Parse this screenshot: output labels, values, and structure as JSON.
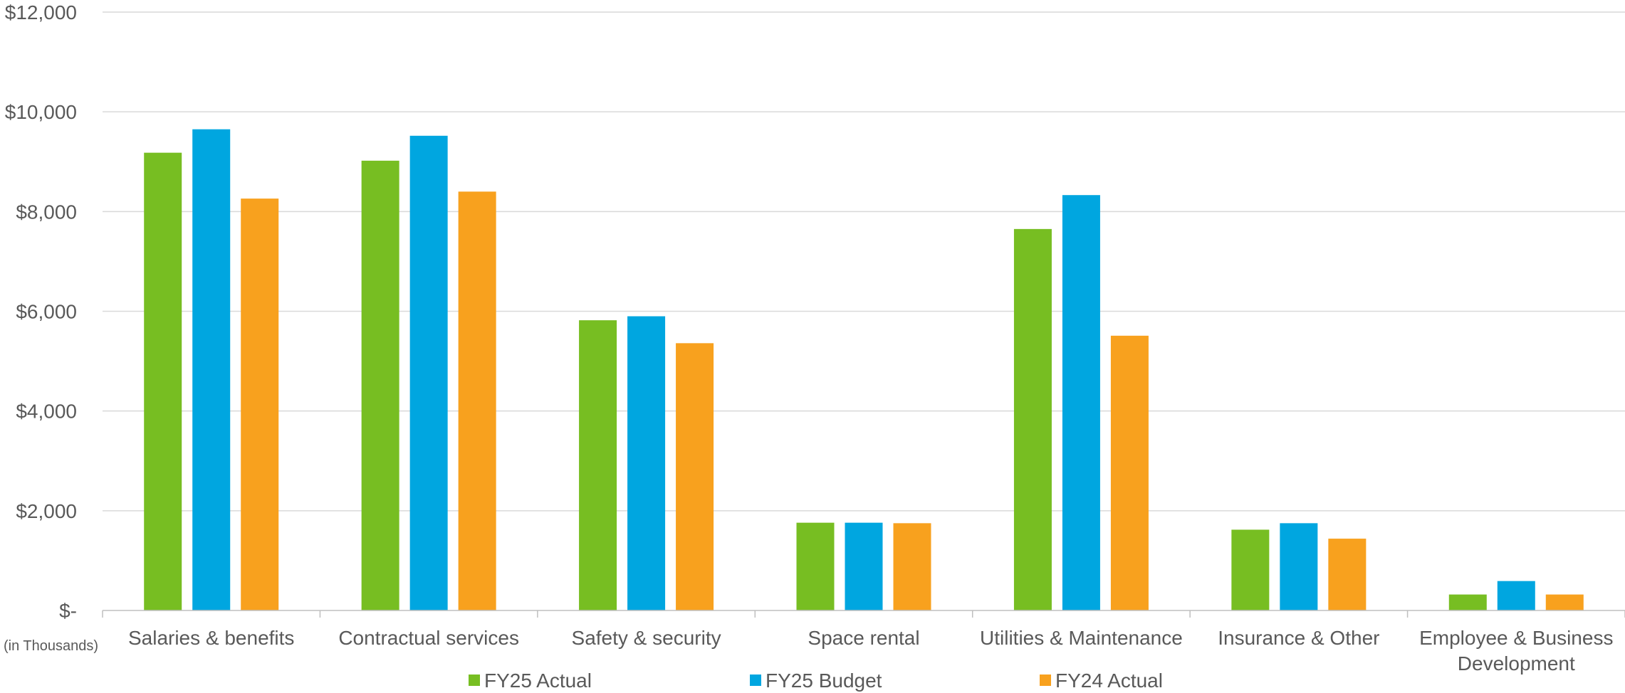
{
  "chart_data": {
    "type": "bar",
    "title": "",
    "xlabel": "",
    "ylabel": "",
    "unit_note": "(in Thousands)",
    "ylim": [
      0,
      12000
    ],
    "y_ticks": [
      0,
      2000,
      4000,
      6000,
      8000,
      10000,
      12000
    ],
    "y_tick_labels": [
      "$-",
      "$2,000",
      "$4,000",
      "$6,000",
      "$8,000",
      "$10,000",
      "$12,000"
    ],
    "grid": true,
    "legend_position": "bottom",
    "categories": [
      [
        "Salaries & benefits"
      ],
      [
        "Contractual services"
      ],
      [
        "Safety & security"
      ],
      [
        "Space rental"
      ],
      [
        "Utilities & Maintenance"
      ],
      [
        "Insurance & Other"
      ],
      [
        "Employee & Business",
        "Development"
      ]
    ],
    "series": [
      {
        "name": "FY25 Actual",
        "color": "#77BE22",
        "values": [
          9180,
          9020,
          5820,
          1760,
          7650,
          1620,
          320
        ]
      },
      {
        "name": "FY25 Budget",
        "color": "#00A6E0",
        "values": [
          9650,
          9520,
          5900,
          1760,
          8330,
          1750,
          590
        ]
      },
      {
        "name": "FY24 Actual",
        "color": "#F8A11E",
        "values": [
          8260,
          8400,
          5360,
          1750,
          5510,
          1440,
          320
        ]
      }
    ]
  }
}
